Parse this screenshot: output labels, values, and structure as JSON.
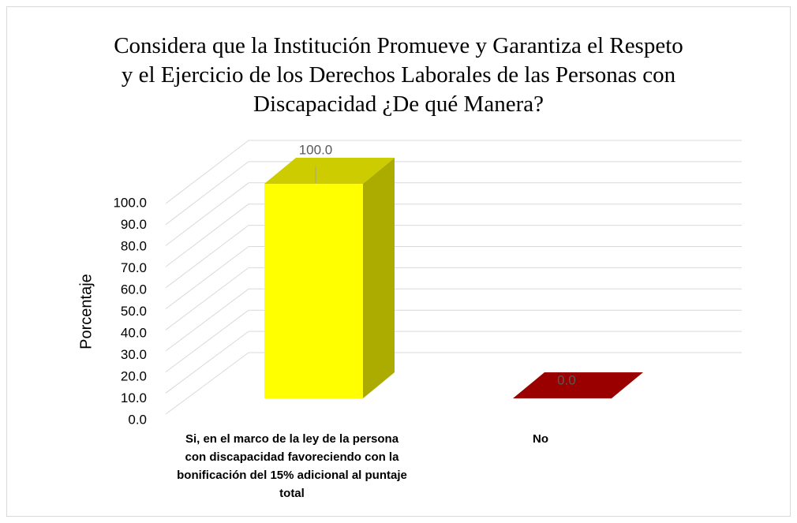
{
  "chart_data": {
    "type": "bar3d",
    "title": "Considera que la Institución Promueve y Garantiza el Respeto y el Ejercicio de los Derechos Laborales de las Personas con Discapacidad ¿De qué Manera?",
    "ylabel": "Porcentaje",
    "categories": [
      "Si, en el marco de la ley de la persona con discapacidad favoreciendo con la bonificación del 15% adicional al puntaje total",
      "No"
    ],
    "values": [
      100,
      0
    ],
    "value_labels": [
      "100.0",
      "0.0"
    ],
    "colors": [
      "#ffff00",
      "#c00000"
    ],
    "ylim": [
      0,
      100
    ],
    "yticks": [
      {
        "value": 0,
        "label": "0.0"
      },
      {
        "value": 10,
        "label": "10.0"
      },
      {
        "value": 20,
        "label": "20.0"
      },
      {
        "value": 30,
        "label": "30.0"
      },
      {
        "value": 40,
        "label": "40.0"
      },
      {
        "value": 50,
        "label": "50.0"
      },
      {
        "value": 60,
        "label": "60.0"
      },
      {
        "value": 70,
        "label": "70.0"
      },
      {
        "value": 80,
        "label": "80.0"
      },
      {
        "value": 90,
        "label": "90.0"
      },
      {
        "value": 100,
        "label": "100.0"
      }
    ],
    "grid": true
  }
}
